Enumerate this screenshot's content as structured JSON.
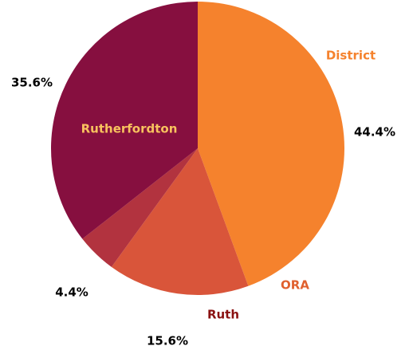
{
  "chart_data": {
    "type": "pie",
    "categories": [
      "District",
      "ORA",
      "Ruth",
      "Rutherfordton"
    ],
    "values": [
      44.4,
      15.6,
      4.4,
      35.6
    ],
    "value_labels": [
      "44.4%",
      "15.6%",
      "4.4%",
      "35.6%"
    ],
    "colors": [
      "#f5822d",
      "#d9553a",
      "#b2333f",
      "#860f3f"
    ],
    "label_colors": [
      "#f5822d",
      "#e0602e",
      "#8a1212",
      "#f8c25e"
    ]
  }
}
